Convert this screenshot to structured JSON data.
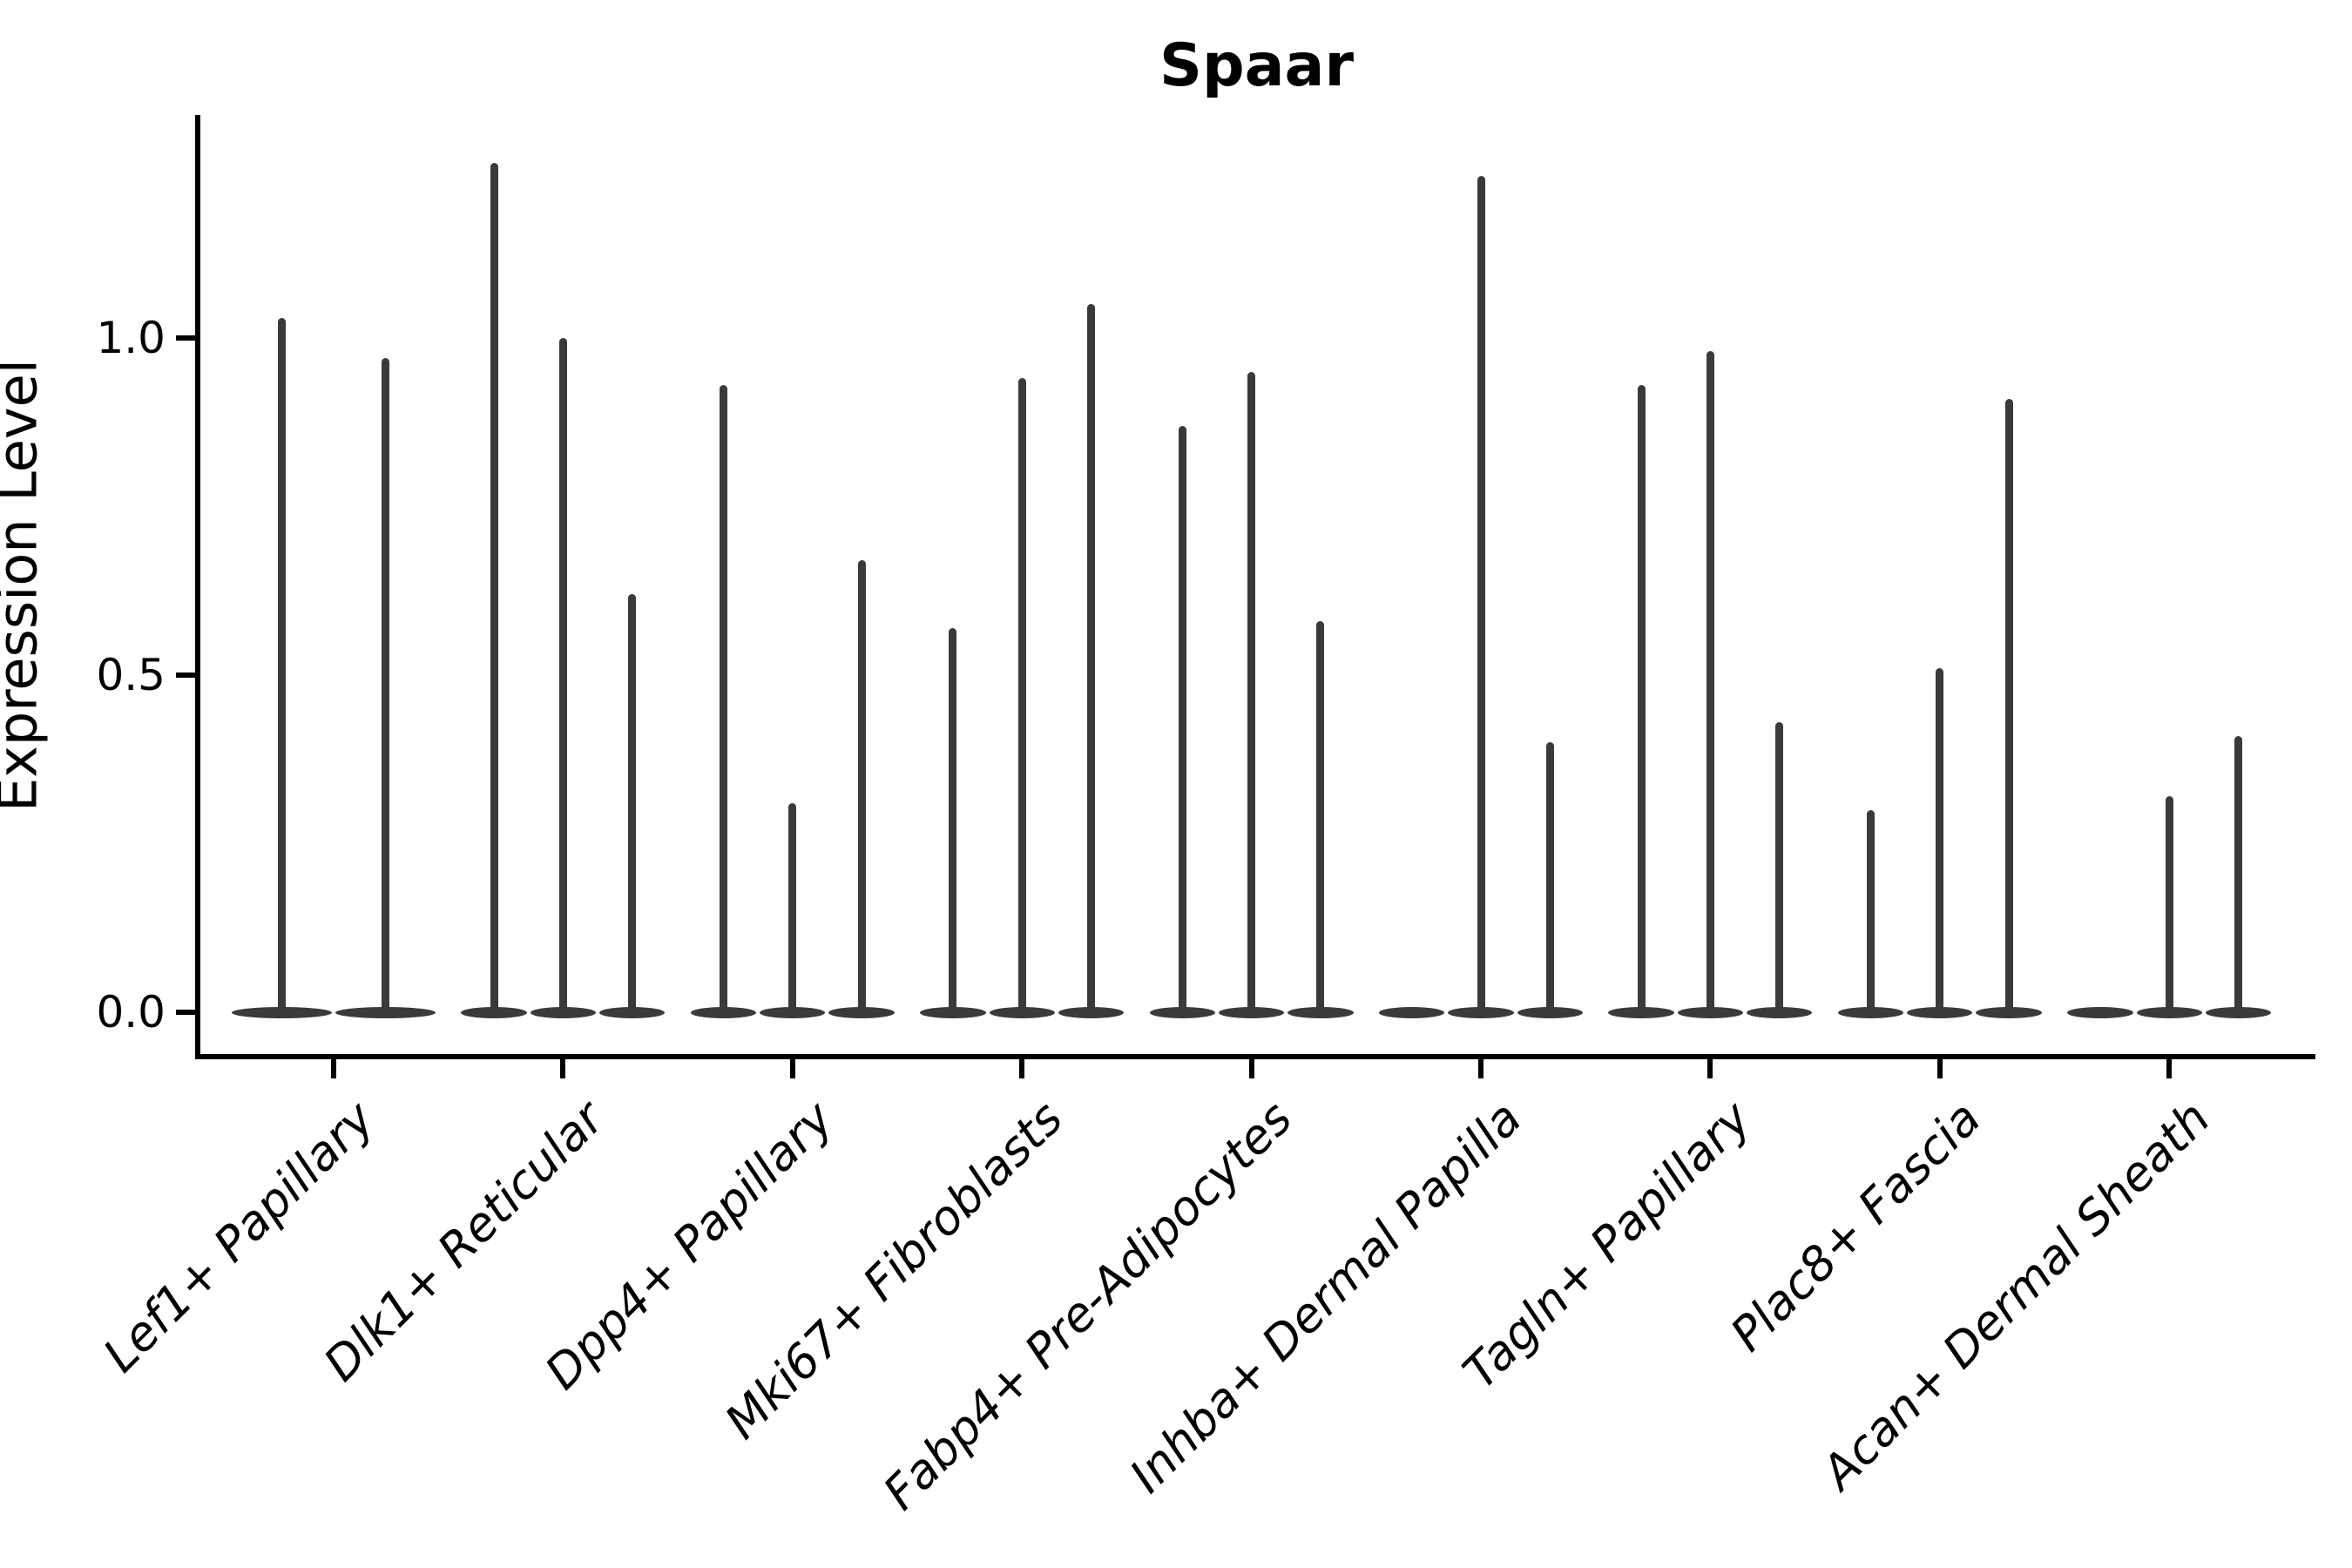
{
  "title": "Spaar",
  "y_axis": {
    "label": "Expression Level",
    "tick_labels": [
      "0.0",
      "0.5",
      "1.0"
    ]
  },
  "colors": {
    "violin": "#3a3a3a",
    "axis": "#000000",
    "background": "#ffffff"
  },
  "chart_data": {
    "type": "violin",
    "title": "Spaar",
    "xlabel": "",
    "ylabel": "Expression Level",
    "yticks": [
      0.0,
      0.5,
      1.0
    ],
    "ytick_labels": [
      "0.0",
      "0.5",
      "1.0"
    ],
    "ylim": [
      -0.06,
      1.33
    ],
    "grid": false,
    "legend": "none",
    "categories": [
      "Lef1+ Papillary",
      "Dlk1+ Reticular",
      "Dpp4+ Papillary",
      "Mki67+ Fibroblasts",
      "Fabp4+ Pre-Adipocytes",
      "Inhba+ Dermal Papilla",
      "Tagln+ Papillary",
      "Plac8+ Fascia",
      "Acan+ Dermal Sheath"
    ],
    "groups": [
      {
        "label": "Lef1+ Papillary",
        "violin_maxima": [
          1.03,
          0.97
        ]
      },
      {
        "label": "Dlk1+ Reticular",
        "violin_maxima": [
          1.26,
          1.0,
          0.62
        ]
      },
      {
        "label": "Dpp4+ Papillary",
        "violin_maxima": [
          0.93,
          0.31,
          0.67
        ]
      },
      {
        "label": "Mki67+ Fibroblasts",
        "violin_maxima": [
          0.57,
          0.94,
          1.05
        ]
      },
      {
        "label": "Fabp4+ Pre-Adipocytes",
        "violin_maxima": [
          0.87,
          0.95,
          0.58
        ]
      },
      {
        "label": "Inhba+ Dermal Papilla",
        "violin_maxima": [
          0.0,
          1.24,
          0.4
        ]
      },
      {
        "label": "Tagln+ Papillary",
        "violin_maxima": [
          0.93,
          0.98,
          0.43
        ]
      },
      {
        "label": "Plac8+ Fascia",
        "violin_maxima": [
          0.3,
          0.51,
          0.91
        ]
      },
      {
        "label": "Acan+ Dermal Sheath",
        "violin_maxima": [
          0.0,
          0.32,
          0.41
        ]
      }
    ],
    "description": "Violin plot of expression level per cluster; each cluster shows 2-3 thin violins (mostly-zero expression with narrow spikes to the maximum value)."
  }
}
